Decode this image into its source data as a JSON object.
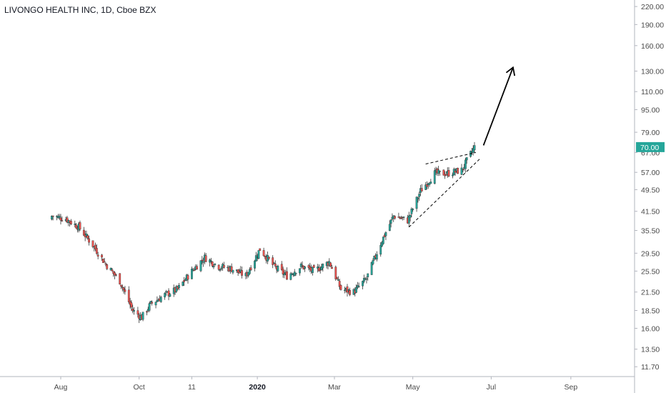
{
  "chart_data": {
    "type": "candlestick",
    "title": "LIVONGO HEALTH INC, 1D, Cboe BZX",
    "scale": "log",
    "ylim": [
      10.8,
      232
    ],
    "y_ticks": [
      "220.00",
      "190.00",
      "160.00",
      "130.00",
      "110.00",
      "95.00",
      "79.00",
      "67.00",
      "57.00",
      "49.50",
      "41.50",
      "35.50",
      "29.50",
      "25.50",
      "21.50",
      "18.50",
      "16.00",
      "13.50",
      "11.70"
    ],
    "x_ticks": [
      {
        "label": "Aug",
        "date": "2019-08-01",
        "bold": false
      },
      {
        "label": "Oct",
        "date": "2019-10-01",
        "bold": false
      },
      {
        "label": "11",
        "date": "2019-11-11",
        "bold": false
      },
      {
        "label": "2020",
        "date": "2020-01-01",
        "bold": true
      },
      {
        "label": "Mar",
        "date": "2020-03-01",
        "bold": false
      },
      {
        "label": "May",
        "date": "2020-05-01",
        "bold": false
      },
      {
        "label": "Jul",
        "date": "2020-07-01",
        "bold": false
      },
      {
        "label": "Sep",
        "date": "2020-09-01",
        "bold": false
      }
    ],
    "last_price": "70.00",
    "last_price_value": 70.0,
    "colors": {
      "up": "#26a69a",
      "down": "#ef5350",
      "tag": "#26a69a",
      "annotation": "#000000"
    },
    "series_anchor": {
      "dates": [
        "2019-07-25",
        "2019-08-05",
        "2019-08-15",
        "2019-08-26",
        "2019-09-05",
        "2019-09-16",
        "2019-09-26",
        "2019-10-03",
        "2019-10-10",
        "2019-10-21",
        "2019-10-31",
        "2019-11-11",
        "2019-11-21",
        "2019-12-02",
        "2019-12-12",
        "2019-12-23",
        "2020-01-03",
        "2020-01-14",
        "2020-01-24",
        "2020-02-04",
        "2020-02-14",
        "2020-02-26",
        "2020-03-06",
        "2020-03-16",
        "2020-03-26",
        "2020-04-06",
        "2020-04-16",
        "2020-04-27",
        "2020-05-07",
        "2020-05-18",
        "2020-05-28",
        "2020-06-08",
        "2020-06-18"
      ],
      "close": [
        40.0,
        39.0,
        36.5,
        31.5,
        27.0,
        23.5,
        18.5,
        17.5,
        19.5,
        21.0,
        22.0,
        25.5,
        28.5,
        26.5,
        26.0,
        24.5,
        30.5,
        26.5,
        24.5,
        26.5,
        25.5,
        27.5,
        22.0,
        21.5,
        24.0,
        32.0,
        40.0,
        38.5,
        49.0,
        56.5,
        56.5,
        58.0,
        70.0
      ]
    },
    "annotations": {
      "wedge_upper": [
        {
          "date": "2020-05-11",
          "price": 61.0
        },
        {
          "date": "2020-06-19",
          "price": 67.0
        }
      ],
      "wedge_lower": [
        {
          "date": "2020-04-28",
          "price": 36.5
        },
        {
          "date": "2020-06-22",
          "price": 63.5
        }
      ],
      "arrow": [
        {
          "date": "2020-06-25",
          "price": 71.0
        },
        {
          "date": "2020-07-18",
          "price": 134.0
        }
      ]
    }
  }
}
